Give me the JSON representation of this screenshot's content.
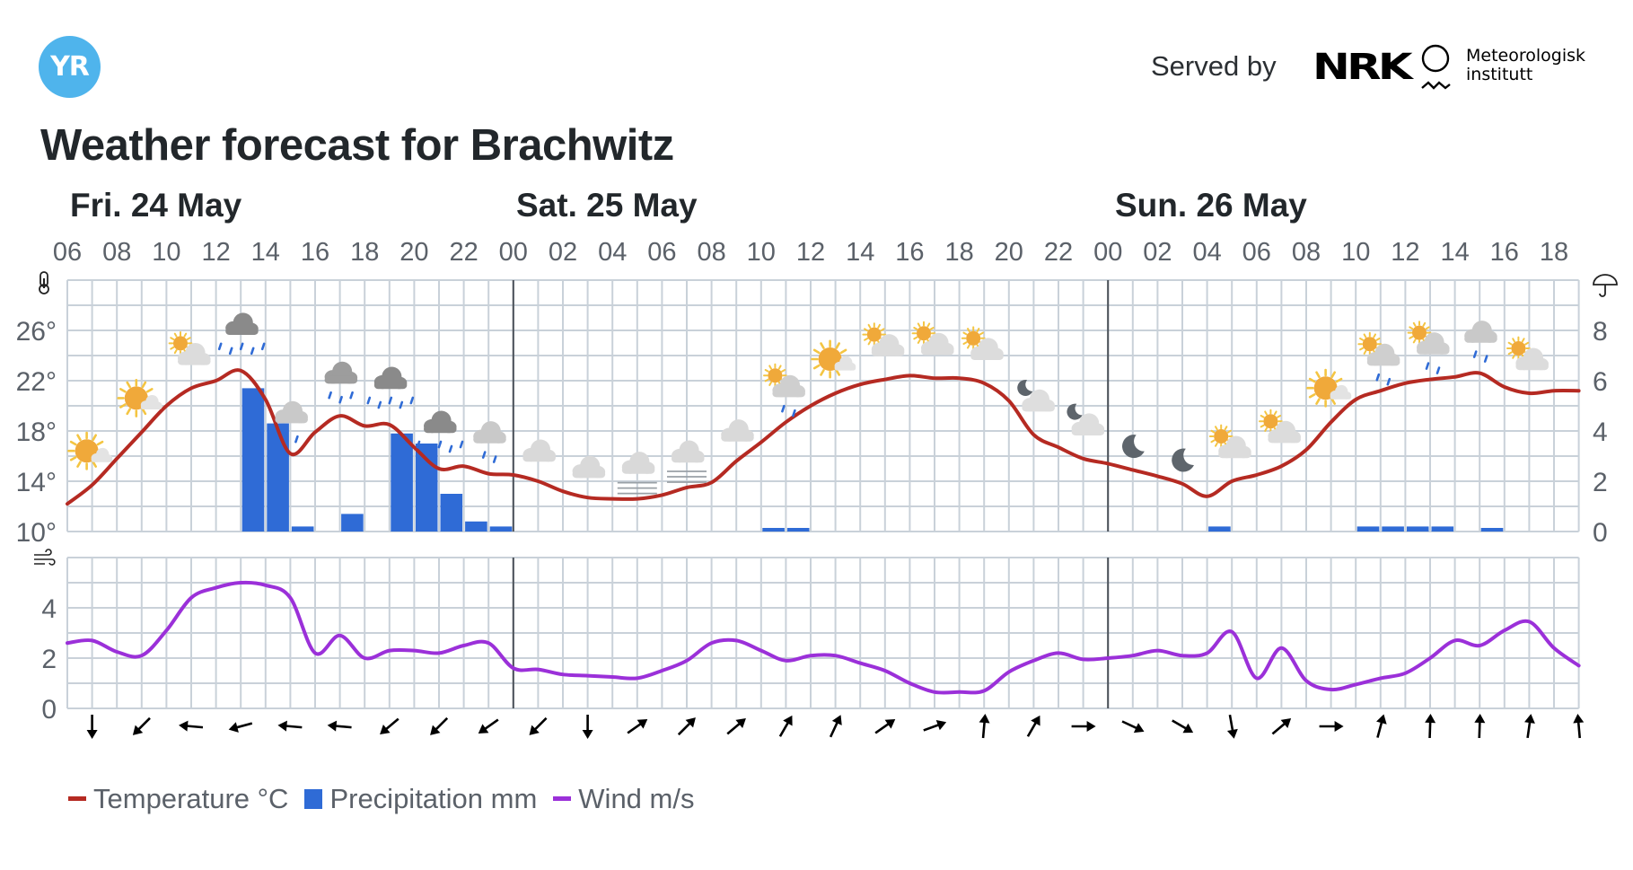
{
  "header": {
    "logo_text": "YR",
    "served_by": "Served by",
    "partner_nrk": "NRK",
    "partner_mi_line1": "Meteorologisk",
    "partner_mi_line2": "institutt",
    "title": "Weather forecast for Brachwitz"
  },
  "days": [
    {
      "label": "Fri. 24 May",
      "x": 78
    },
    {
      "label": "Sat. 25 May",
      "x": 575
    },
    {
      "label": "Sun. 26 May",
      "x": 1242
    }
  ],
  "legend": {
    "temperature": "Temperature °C",
    "precipitation": "Precipitation mm",
    "wind": "Wind m/s"
  },
  "colors": {
    "temperature": "#b52a22",
    "precipitation": "#2f6bd6",
    "wind": "#9b30d9",
    "grid": "#c9d1d9",
    "axis_text": "#5b6169",
    "day_divider": "#4a5058"
  },
  "chart_data": {
    "type": "line",
    "title": "Weather forecast for Brachwitz",
    "start": "Fri 06:00",
    "hours": 61,
    "hour_tick_labels": [
      "06",
      "08",
      "10",
      "12",
      "14",
      "16",
      "18",
      "20",
      "22",
      "00",
      "02",
      "04",
      "06",
      "08",
      "10",
      "12",
      "14",
      "16",
      "18",
      "20",
      "22",
      "00",
      "02",
      "04",
      "06",
      "08",
      "10",
      "12",
      "14",
      "16",
      "18"
    ],
    "day_dividers_hour_index": [
      18,
      42
    ],
    "temperature_axis": {
      "label_icon": "thermometer-icon",
      "ticks": [
        "10°",
        "14°",
        "18°",
        "22°",
        "26°"
      ],
      "min": 10,
      "max": 30
    },
    "precipitation_axis": {
      "label_icon": "umbrella-icon",
      "ticks": [
        "0",
        "2",
        "4",
        "6",
        "8"
      ],
      "min": 0,
      "max": 10
    },
    "wind_axis": {
      "label_icon": "wind-icon",
      "ticks": [
        "0",
        "2",
        "4"
      ],
      "min": 0,
      "max": 6
    },
    "series": [
      {
        "name": "Temperature °C",
        "type": "line",
        "values": [
          12.2,
          13.7,
          15.8,
          17.9,
          20.0,
          21.4,
          22.0,
          22.8,
          20.5,
          16.2,
          17.9,
          19.2,
          18.4,
          18.5,
          16.7,
          15.0,
          15.2,
          14.6,
          14.5,
          14.0,
          13.2,
          12.7,
          12.6,
          12.6,
          12.9,
          13.5,
          13.9,
          15.6,
          17.1,
          18.7,
          20.0,
          21.0,
          21.7,
          22.1,
          22.4,
          22.2,
          22.2,
          21.8,
          20.4,
          17.7,
          16.7,
          15.8,
          15.4,
          14.9,
          14.4,
          13.8,
          12.8,
          14.0,
          14.5,
          15.2,
          16.5,
          18.7,
          20.5,
          21.2,
          21.8,
          22.1,
          22.3,
          22.6,
          21.5,
          21.0,
          21.2,
          21.2
        ]
      },
      {
        "name": "Precipitation mm",
        "type": "bar",
        "bars": [
          {
            "hour_index": 7,
            "value": 5.7
          },
          {
            "hour_index": 8,
            "value": 4.3
          },
          {
            "hour_index": 9,
            "value": 0.2
          },
          {
            "hour_index": 11,
            "value": 0.7
          },
          {
            "hour_index": 13,
            "value": 3.9
          },
          {
            "hour_index": 14,
            "value": 3.5
          },
          {
            "hour_index": 15,
            "value": 1.5
          },
          {
            "hour_index": 16,
            "value": 0.4
          },
          {
            "hour_index": 17,
            "value": 0.2
          },
          {
            "hour_index": 28,
            "value": 0.1
          },
          {
            "hour_index": 29,
            "value": 0.1
          },
          {
            "hour_index": 46,
            "value": 0.2
          },
          {
            "hour_index": 52,
            "value": 0.2
          },
          {
            "hour_index": 53,
            "value": 0.2
          },
          {
            "hour_index": 54,
            "value": 0.2
          },
          {
            "hour_index": 55,
            "value": 0.2
          },
          {
            "hour_index": 57,
            "value": 0.1
          }
        ]
      },
      {
        "name": "Wind m/s",
        "type": "line",
        "values": [
          2.6,
          2.7,
          2.25,
          2.1,
          3.1,
          4.4,
          4.8,
          5.0,
          4.9,
          4.4,
          2.2,
          2.9,
          2.0,
          2.3,
          2.3,
          2.2,
          2.5,
          2.6,
          1.6,
          1.55,
          1.35,
          1.3,
          1.25,
          1.2,
          1.5,
          1.9,
          2.6,
          2.7,
          2.3,
          1.9,
          2.1,
          2.1,
          1.8,
          1.5,
          1.0,
          0.65,
          0.65,
          0.7,
          1.45,
          1.9,
          2.2,
          1.95,
          2.0,
          2.1,
          2.3,
          2.1,
          2.2,
          3.05,
          1.2,
          2.4,
          1.1,
          0.75,
          0.95,
          1.2,
          1.4,
          2.0,
          2.7,
          2.5,
          3.1,
          3.45,
          2.4,
          1.7
        ]
      }
    ],
    "symbols": [
      {
        "hour_index": 1,
        "icon": "fair-day"
      },
      {
        "hour_index": 3,
        "icon": "fair-day"
      },
      {
        "hour_index": 5,
        "icon": "partly-cloudy-day"
      },
      {
        "hour_index": 7,
        "icon": "heavy-rain"
      },
      {
        "hour_index": 9,
        "icon": "light-rain"
      },
      {
        "hour_index": 11,
        "icon": "rain"
      },
      {
        "hour_index": 13,
        "icon": "heavy-rain"
      },
      {
        "hour_index": 15,
        "icon": "heavy-rain"
      },
      {
        "hour_index": 17,
        "icon": "light-rain"
      },
      {
        "hour_index": 19,
        "icon": "cloudy"
      },
      {
        "hour_index": 21,
        "icon": "cloudy"
      },
      {
        "hour_index": 23,
        "icon": "fog"
      },
      {
        "hour_index": 25,
        "icon": "fog"
      },
      {
        "hour_index": 27,
        "icon": "cloudy"
      },
      {
        "hour_index": 29,
        "icon": "light-rain-showers-day"
      },
      {
        "hour_index": 31,
        "icon": "fair-day"
      },
      {
        "hour_index": 33,
        "icon": "partly-cloudy-day"
      },
      {
        "hour_index": 35,
        "icon": "partly-cloudy-day"
      },
      {
        "hour_index": 37,
        "icon": "partly-cloudy-day"
      },
      {
        "hour_index": 39,
        "icon": "partly-cloudy-night"
      },
      {
        "hour_index": 41,
        "icon": "partly-cloudy-night"
      },
      {
        "hour_index": 43,
        "icon": "clear-night"
      },
      {
        "hour_index": 45,
        "icon": "clear-night"
      },
      {
        "hour_index": 47,
        "icon": "partly-cloudy-day"
      },
      {
        "hour_index": 49,
        "icon": "partly-cloudy-day"
      },
      {
        "hour_index": 51,
        "icon": "fair-day"
      },
      {
        "hour_index": 53,
        "icon": "light-rain-showers-day"
      },
      {
        "hour_index": 55,
        "icon": "light-rain-showers-day"
      },
      {
        "hour_index": 57,
        "icon": "light-rain"
      },
      {
        "hour_index": 59,
        "icon": "partly-cloudy-day"
      }
    ],
    "wind_directions": [
      {
        "hour_index": 1,
        "rotate": 180
      },
      {
        "hour_index": 3,
        "rotate": 225
      },
      {
        "hour_index": 5,
        "rotate": 275
      },
      {
        "hour_index": 7,
        "rotate": 255
      },
      {
        "hour_index": 9,
        "rotate": 275
      },
      {
        "hour_index": 11,
        "rotate": 275
      },
      {
        "hour_index": 13,
        "rotate": 230
      },
      {
        "hour_index": 15,
        "rotate": 225
      },
      {
        "hour_index": 17,
        "rotate": 235
      },
      {
        "hour_index": 19,
        "rotate": 225
      },
      {
        "hour_index": 21,
        "rotate": 180
      },
      {
        "hour_index": 23,
        "rotate": 55
      },
      {
        "hour_index": 25,
        "rotate": 45
      },
      {
        "hour_index": 27,
        "rotate": 50
      },
      {
        "hour_index": 29,
        "rotate": 30
      },
      {
        "hour_index": 31,
        "rotate": 25
      },
      {
        "hour_index": 33,
        "rotate": 55
      },
      {
        "hour_index": 35,
        "rotate": 70
      },
      {
        "hour_index": 37,
        "rotate": 5
      },
      {
        "hour_index": 39,
        "rotate": 30
      },
      {
        "hour_index": 41,
        "rotate": 90
      },
      {
        "hour_index": 43,
        "rotate": 115
      },
      {
        "hour_index": 45,
        "rotate": 120
      },
      {
        "hour_index": 47,
        "rotate": 170
      },
      {
        "hour_index": 49,
        "rotate": 50
      },
      {
        "hour_index": 51,
        "rotate": 90
      },
      {
        "hour_index": 53,
        "rotate": 15
      },
      {
        "hour_index": 55,
        "rotate": 2
      },
      {
        "hour_index": 57,
        "rotate": 2
      },
      {
        "hour_index": 59,
        "rotate": 8
      },
      {
        "hour_index": 61,
        "rotate": 355
      }
    ]
  }
}
